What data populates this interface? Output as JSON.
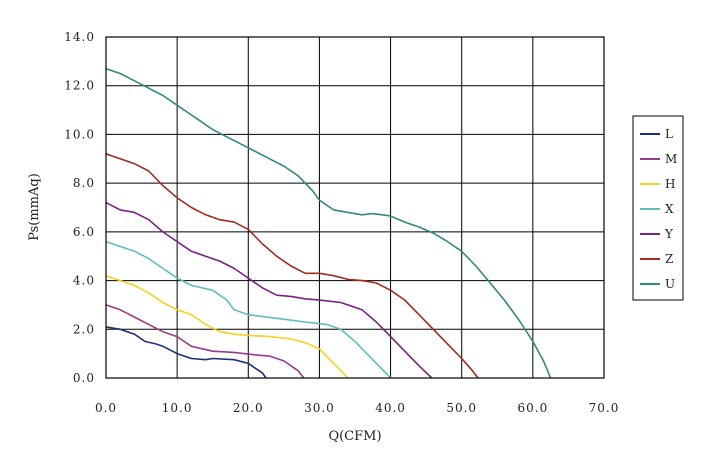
{
  "chart_data": {
    "type": "line",
    "title": "",
    "xlabel": "Q(CFM)",
    "ylabel": "Ps(mmAq)",
    "xlim": [
      0,
      70
    ],
    "ylim": [
      0,
      14
    ],
    "x_ticks": [
      "0.0",
      "10.0",
      "20.0",
      "30.0",
      "40.0",
      "50.0",
      "60.0",
      "70.0"
    ],
    "y_ticks": [
      "0.0",
      "2.0",
      "4.0",
      "6.0",
      "8.0",
      "10.0",
      "12.0",
      "14.0"
    ],
    "grid": true,
    "legend_position": "right",
    "series": [
      {
        "name": "L",
        "color": "#1f2f7a",
        "points": [
          [
            0,
            2.1
          ],
          [
            2,
            2.0
          ],
          [
            4,
            1.8
          ],
          [
            5.5,
            1.5
          ],
          [
            7,
            1.4
          ],
          [
            8,
            1.3
          ],
          [
            10,
            1.0
          ],
          [
            12,
            0.8
          ],
          [
            14,
            0.75
          ],
          [
            15,
            0.8
          ],
          [
            18,
            0.75
          ],
          [
            20,
            0.6
          ],
          [
            21,
            0.4
          ],
          [
            22,
            0.2
          ],
          [
            22.5,
            0
          ]
        ]
      },
      {
        "name": "M",
        "color": "#9a3a8a",
        "points": [
          [
            0,
            3.0
          ],
          [
            2,
            2.8
          ],
          [
            4,
            2.5
          ],
          [
            6,
            2.2
          ],
          [
            8,
            1.9
          ],
          [
            10,
            1.7
          ],
          [
            12,
            1.3
          ],
          [
            15,
            1.1
          ],
          [
            18,
            1.05
          ],
          [
            21,
            0.95
          ],
          [
            23,
            0.9
          ],
          [
            25,
            0.7
          ],
          [
            26,
            0.5
          ],
          [
            27,
            0.3
          ],
          [
            27.8,
            0
          ]
        ]
      },
      {
        "name": "H",
        "color": "#f5d21e",
        "points": [
          [
            0,
            4.2
          ],
          [
            2,
            4.0
          ],
          [
            4,
            3.8
          ],
          [
            6,
            3.5
          ],
          [
            8,
            3.1
          ],
          [
            10,
            2.8
          ],
          [
            12,
            2.6
          ],
          [
            14,
            2.2
          ],
          [
            16,
            1.9
          ],
          [
            18,
            1.8
          ],
          [
            20,
            1.75
          ],
          [
            23,
            1.7
          ],
          [
            26,
            1.6
          ],
          [
            28,
            1.45
          ],
          [
            30,
            1.2
          ],
          [
            32,
            0.6
          ],
          [
            33,
            0.3
          ],
          [
            34,
            0
          ]
        ]
      },
      {
        "name": "X",
        "color": "#5bbfbf",
        "points": [
          [
            0,
            5.6
          ],
          [
            2,
            5.4
          ],
          [
            4,
            5.2
          ],
          [
            6,
            4.9
          ],
          [
            8,
            4.5
          ],
          [
            10,
            4.1
          ],
          [
            12,
            3.8
          ],
          [
            15,
            3.6
          ],
          [
            17,
            3.2
          ],
          [
            18,
            2.8
          ],
          [
            20,
            2.6
          ],
          [
            24,
            2.45
          ],
          [
            28,
            2.3
          ],
          [
            31,
            2.2
          ],
          [
            33,
            2.0
          ],
          [
            35,
            1.5
          ],
          [
            37,
            0.9
          ],
          [
            39,
            0.3
          ],
          [
            40,
            0
          ]
        ]
      },
      {
        "name": "Y",
        "color": "#7b1f86",
        "points": [
          [
            0,
            7.2
          ],
          [
            2,
            6.9
          ],
          [
            4,
            6.8
          ],
          [
            6,
            6.5
          ],
          [
            8,
            6.0
          ],
          [
            10,
            5.6
          ],
          [
            12,
            5.2
          ],
          [
            14,
            5.0
          ],
          [
            16,
            4.8
          ],
          [
            18,
            4.5
          ],
          [
            20,
            4.1
          ],
          [
            22,
            3.7
          ],
          [
            24,
            3.4
          ],
          [
            26,
            3.35
          ],
          [
            28,
            3.25
          ],
          [
            30,
            3.2
          ],
          [
            33,
            3.1
          ],
          [
            36,
            2.8
          ],
          [
            38,
            2.3
          ],
          [
            40,
            1.7
          ],
          [
            42,
            1.1
          ],
          [
            44,
            0.5
          ],
          [
            45.8,
            0
          ]
        ]
      },
      {
        "name": "Z",
        "color": "#a32a1e",
        "points": [
          [
            0,
            9.2
          ],
          [
            2,
            9.0
          ],
          [
            4,
            8.8
          ],
          [
            6,
            8.5
          ],
          [
            8,
            7.9
          ],
          [
            10,
            7.4
          ],
          [
            12,
            7.0
          ],
          [
            14,
            6.7
          ],
          [
            16,
            6.5
          ],
          [
            18,
            6.4
          ],
          [
            20,
            6.1
          ],
          [
            22,
            5.5
          ],
          [
            24,
            5.0
          ],
          [
            26,
            4.6
          ],
          [
            28,
            4.3
          ],
          [
            30,
            4.3
          ],
          [
            32,
            4.2
          ],
          [
            34,
            4.05
          ],
          [
            36,
            4.0
          ],
          [
            38,
            3.9
          ],
          [
            40,
            3.6
          ],
          [
            42,
            3.2
          ],
          [
            44,
            2.6
          ],
          [
            46,
            2.0
          ],
          [
            48,
            1.4
          ],
          [
            50,
            0.8
          ],
          [
            51.5,
            0.3
          ],
          [
            52.3,
            0
          ]
        ]
      },
      {
        "name": "U",
        "color": "#2e8a82",
        "points": [
          [
            0,
            12.7
          ],
          [
            2,
            12.5
          ],
          [
            4,
            12.2
          ],
          [
            6,
            11.9
          ],
          [
            8,
            11.6
          ],
          [
            9.5,
            11.3
          ],
          [
            11,
            11.0
          ],
          [
            13,
            10.6
          ],
          [
            15,
            10.2
          ],
          [
            17,
            9.9
          ],
          [
            19,
            9.6
          ],
          [
            21,
            9.3
          ],
          [
            23,
            9.0
          ],
          [
            25,
            8.7
          ],
          [
            27,
            8.3
          ],
          [
            29,
            7.7
          ],
          [
            30,
            7.3
          ],
          [
            32,
            6.9
          ],
          [
            34,
            6.8
          ],
          [
            36,
            6.7
          ],
          [
            37.5,
            6.75
          ],
          [
            40,
            6.65
          ],
          [
            42,
            6.4
          ],
          [
            44,
            6.2
          ],
          [
            46,
            5.95
          ],
          [
            48,
            5.6
          ],
          [
            50,
            5.2
          ],
          [
            52,
            4.6
          ],
          [
            54,
            3.9
          ],
          [
            56,
            3.2
          ],
          [
            58,
            2.4
          ],
          [
            60,
            1.5
          ],
          [
            61.5,
            0.7
          ],
          [
            62.5,
            0
          ]
        ]
      }
    ]
  }
}
